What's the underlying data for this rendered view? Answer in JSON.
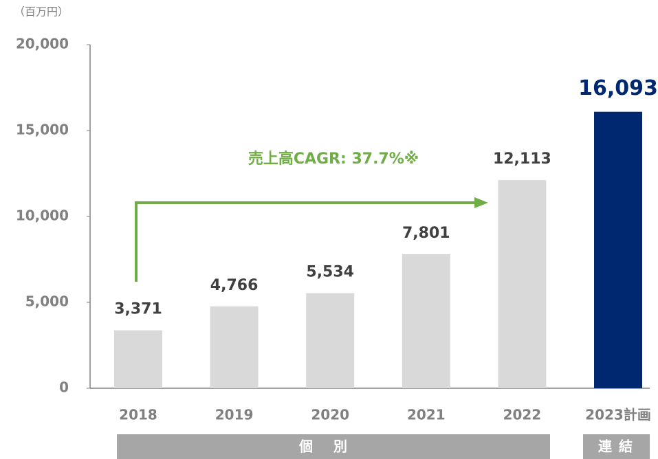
{
  "chart_data": {
    "type": "bar",
    "unit": "（百万円）",
    "categories": [
      "2018",
      "2019",
      "2020",
      "2021",
      "2022",
      "2023計画"
    ],
    "values": [
      3371,
      4766,
      5534,
      7801,
      12113,
      16093
    ],
    "value_labels": [
      "3,371",
      "4,766",
      "5,534",
      "7,801",
      "12,113",
      "16,093"
    ],
    "colors": [
      "#d9d9d9",
      "#d9d9d9",
      "#d9d9d9",
      "#d9d9d9",
      "#d9d9d9",
      "#002870"
    ],
    "ylim": [
      0,
      20000
    ],
    "yticks": [
      0,
      {
        "value": 5000,
        "label": "5,000"
      },
      {
        "value": 10000,
        "label": "10,000"
      },
      {
        "value": 15000,
        "label": "15,000"
      },
      {
        "value": 20000,
        "label": "20,000"
      }
    ],
    "annotation": "売上高CAGR: 37.7%※",
    "groups": [
      {
        "label": "個別"
      },
      {
        "label": "連結"
      }
    ]
  }
}
